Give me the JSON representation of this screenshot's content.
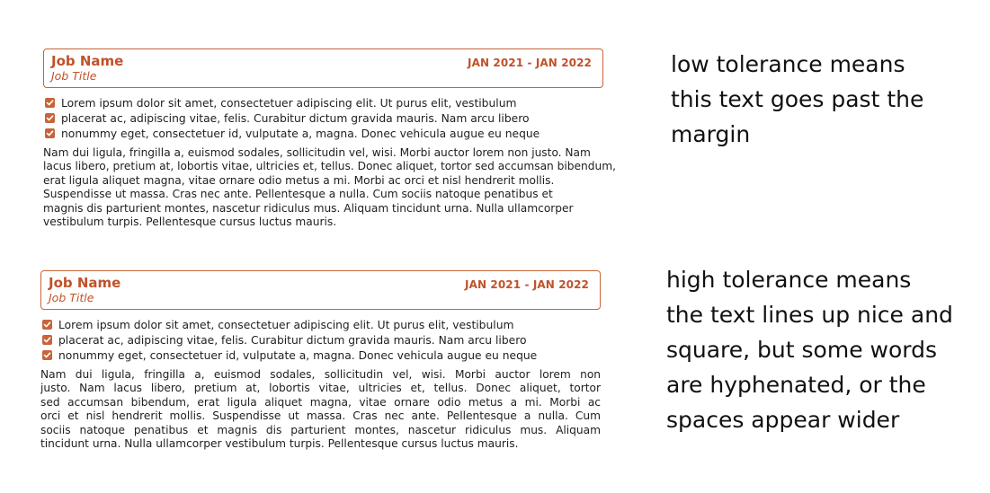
{
  "examples": [
    {
      "job_name": "Job Name",
      "job_title": "Job Title",
      "dates": "JAN 2021 - JAN 2022",
      "bullets": [
        "Lorem ipsum dolor sit amet, consectetuer adipiscing elit. Ut purus elit, vestibulum",
        "placerat ac, adipiscing vitae, felis. Curabitur dictum gravida mauris. Nam arcu libero",
        "nonummy eget, consectetuer id, vulputate a, magna. Donec vehicula augue eu neque"
      ],
      "paragraph_lines": [
        "Nam dui ligula, fringilla a, euismod sodales, sollicitudin vel, wisi. Morbi auctor lorem non justo. Nam",
        "lacus libero, pretium at, lobortis vitae, ultricies et, tellus. Donec aliquet, tortor sed accumsan bibendum,",
        "erat ligula aliquet magna, vitae ornare odio metus a mi. Morbi ac orci et nisl hendrerit mollis.",
        "Suspendisse ut massa. Cras nec ante. Pellentesque a nulla. Cum sociis natoque penatibus et",
        "magnis dis parturient montes, nascetur ridiculus mus. Aliquam tincidunt urna. Nulla ullamcorper",
        "vestibulum turpis. Pellentesque cursus luctus mauris."
      ],
      "note_lines": [
        "low tolerance means",
        "this text goes past the",
        "margin"
      ]
    },
    {
      "job_name": "Job Name",
      "job_title": "Job Title",
      "dates": "JAN 2021 - JAN 2022",
      "bullets": [
        "Lorem ipsum dolor sit amet, consectetuer adipiscing elit. Ut purus elit, vestibulum",
        "placerat ac, adipiscing vitae, felis. Curabitur dictum gravida mauris. Nam arcu libero",
        "nonummy eget, consectetuer id, vulputate a, magna. Donec vehicula augue eu neque"
      ],
      "paragraph_lines": [
        "Nam dui ligula, fringilla a, euismod sodales, sollicitudin vel, wisi. Morbi auctor lorem non",
        "justo. Nam lacus libero, pretium at, lobortis vitae, ultricies et, tellus. Donec aliquet, tortor",
        "sed accumsan bibendum, erat ligula aliquet magna, vitae ornare odio metus a mi. Morbi ac",
        "orci et nisl hendrerit mollis. Suspendisse ut massa. Cras nec ante. Pellentesque a nulla. Cum",
        "sociis natoque penatibus et magnis dis parturient montes, nascetur ridiculus mus. Aliquam",
        "tincidunt urna. Nulla ullamcorper vestibulum turpis. Pellentesque cursus luctus mauris."
      ],
      "note_lines": [
        "high tolerance means",
        "the text lines up nice and",
        "square, but some words",
        "are hyphenated, or the",
        "spaces appear wider"
      ]
    }
  ],
  "accent_color": "#c0522a"
}
